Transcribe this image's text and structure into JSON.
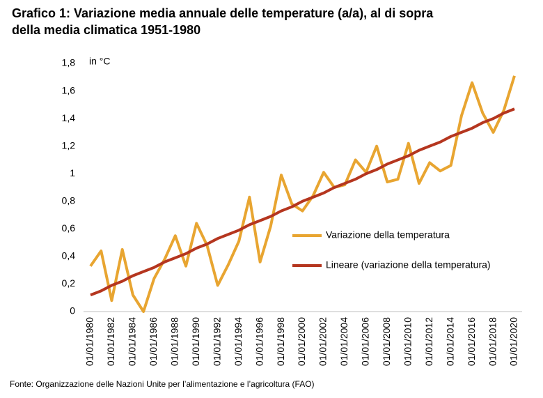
{
  "chart_data": {
    "type": "line",
    "title": [
      "Grafico 1: Variazione media annuale delle temperature (a/a), al di sopra",
      "della media climatica 1951-1980"
    ],
    "y_label": "in °C",
    "source": "Fonte: Organizzazione delle Nazioni Unite per l’alimentazione e l’agricoltura (FAO)",
    "categories": [
      "01/01/1980",
      null,
      "01/01/1982",
      null,
      "01/01/1984",
      null,
      "01/01/1986",
      null,
      "01/01/1988",
      null,
      "01/01/1990",
      null,
      "01/01/1992",
      null,
      "01/01/1994",
      null,
      "01/01/1996",
      null,
      "01/01/1998",
      null,
      "01/01/2000",
      null,
      "01/01/2002",
      null,
      "01/01/2004",
      null,
      "01/01/2006",
      null,
      "01/01/2008",
      null,
      "01/01/2010",
      null,
      "01/01/2012",
      null,
      "01/01/2014",
      null,
      "01/01/2016",
      null,
      "01/01/2018",
      null,
      "01/01/2020"
    ],
    "series": [
      {
        "name": "Variazione della temperatura",
        "color": "#e8a531",
        "values": [
          0.33,
          0.44,
          0.08,
          0.45,
          0.12,
          0,
          0.24,
          0.38,
          0.55,
          0.33,
          0.64,
          0.48,
          0.19,
          0.34,
          0.51,
          0.83,
          0.36,
          0.62,
          0.99,
          0.78,
          0.73,
          0.84,
          1.01,
          0.9,
          0.92,
          1.1,
          1.01,
          1.2,
          0.94,
          0.96,
          1.22,
          0.93,
          1.08,
          1.02,
          1.06,
          1.42,
          1.66,
          1.44,
          1.3,
          1.46,
          1.71
        ]
      },
      {
        "name": "Lineare (variazione della temperatura)",
        "color": "#b5361f",
        "values": [
          0.12,
          0.15,
          0.19,
          0.22,
          0.26,
          0.29,
          0.32,
          0.36,
          0.39,
          0.42,
          0.46,
          0.49,
          0.53,
          0.56,
          0.59,
          0.63,
          0.66,
          0.69,
          0.73,
          0.76,
          0.8,
          0.83,
          0.86,
          0.9,
          0.93,
          0.96,
          1.0,
          1.03,
          1.07,
          1.1,
          1.13,
          1.17,
          1.2,
          1.23,
          1.27,
          1.3,
          1.33,
          1.37,
          1.4,
          1.44,
          1.47
        ]
      }
    ],
    "ylim": [
      0,
      1.8
    ],
    "yticks": [
      0,
      {
        "value": 0.2,
        "label": "0,2"
      },
      {
        "value": 0.4,
        "label": "0,4"
      },
      {
        "value": 0.6,
        "label": "0,6"
      },
      {
        "value": 0.8,
        "label": "0,8"
      },
      1,
      {
        "value": 1.2,
        "label": "1,2"
      },
      {
        "value": 1.4,
        "label": "1,4"
      },
      {
        "value": 1.6,
        "label": "1,6"
      },
      {
        "value": 1.8,
        "label": "1,8"
      }
    ],
    "grid": false,
    "legend": "right"
  }
}
